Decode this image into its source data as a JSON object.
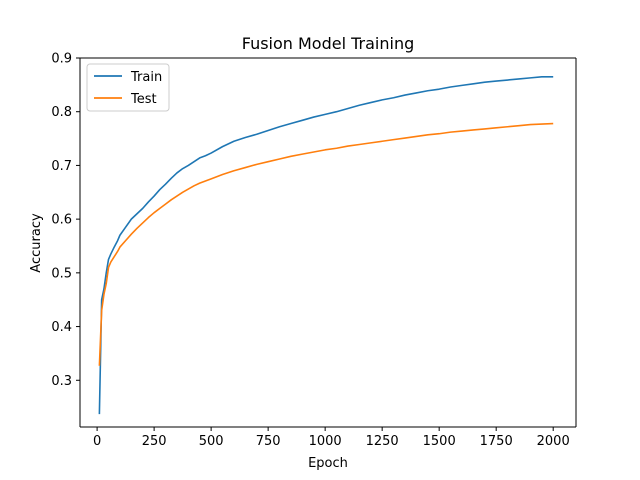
{
  "chart_data": {
    "type": "line",
    "title": "Fusion Model Training",
    "xlabel": "Epoch",
    "ylabel": "Accuracy",
    "xlim": [
      -75,
      2100
    ],
    "ylim": [
      0.213,
      0.9
    ],
    "xticks": [
      0,
      250,
      500,
      750,
      1000,
      1250,
      1500,
      1750,
      2000
    ],
    "yticks": [
      0.3,
      0.4,
      0.5,
      0.6,
      0.7,
      0.8,
      0.9
    ],
    "grid": false,
    "legend": "upper-left",
    "series": [
      {
        "name": "Train",
        "color": "#1f77b4",
        "x": [
          10,
          20,
          30,
          40,
          50,
          60,
          75,
          90,
          100,
          125,
          150,
          175,
          200,
          225,
          250,
          275,
          300,
          325,
          350,
          375,
          400,
          425,
          450,
          475,
          500,
          550,
          600,
          650,
          700,
          750,
          800,
          850,
          900,
          950,
          1000,
          1050,
          1100,
          1150,
          1200,
          1250,
          1300,
          1350,
          1400,
          1450,
          1500,
          1550,
          1600,
          1650,
          1700,
          1750,
          1800,
          1850,
          1900,
          1950,
          2000
        ],
        "values": [
          0.237,
          0.45,
          0.47,
          0.5,
          0.525,
          0.535,
          0.548,
          0.56,
          0.57,
          0.585,
          0.6,
          0.61,
          0.62,
          0.632,
          0.643,
          0.655,
          0.665,
          0.676,
          0.686,
          0.694,
          0.7,
          0.707,
          0.714,
          0.718,
          0.723,
          0.735,
          0.745,
          0.752,
          0.758,
          0.765,
          0.772,
          0.778,
          0.784,
          0.79,
          0.795,
          0.8,
          0.806,
          0.812,
          0.817,
          0.822,
          0.826,
          0.831,
          0.835,
          0.839,
          0.842,
          0.846,
          0.849,
          0.852,
          0.855,
          0.857,
          0.859,
          0.861,
          0.863,
          0.865,
          0.865
        ]
      },
      {
        "name": "Test",
        "color": "#ff7f0e",
        "x": [
          10,
          20,
          30,
          40,
          50,
          60,
          75,
          90,
          100,
          125,
          150,
          175,
          200,
          225,
          250,
          275,
          300,
          325,
          350,
          375,
          400,
          425,
          450,
          475,
          500,
          550,
          600,
          650,
          700,
          750,
          800,
          850,
          900,
          950,
          1000,
          1050,
          1100,
          1150,
          1200,
          1250,
          1300,
          1350,
          1400,
          1450,
          1500,
          1550,
          1600,
          1650,
          1700,
          1750,
          1800,
          1850,
          1900,
          1950,
          2000
        ],
        "values": [
          0.327,
          0.43,
          0.46,
          0.48,
          0.51,
          0.52,
          0.53,
          0.54,
          0.548,
          0.56,
          0.572,
          0.583,
          0.593,
          0.603,
          0.612,
          0.62,
          0.628,
          0.636,
          0.643,
          0.65,
          0.656,
          0.662,
          0.667,
          0.671,
          0.675,
          0.683,
          0.69,
          0.696,
          0.702,
          0.707,
          0.712,
          0.717,
          0.721,
          0.725,
          0.729,
          0.732,
          0.736,
          0.739,
          0.742,
          0.745,
          0.748,
          0.751,
          0.754,
          0.757,
          0.759,
          0.762,
          0.764,
          0.766,
          0.768,
          0.77,
          0.772,
          0.774,
          0.776,
          0.777,
          0.778
        ]
      }
    ]
  }
}
